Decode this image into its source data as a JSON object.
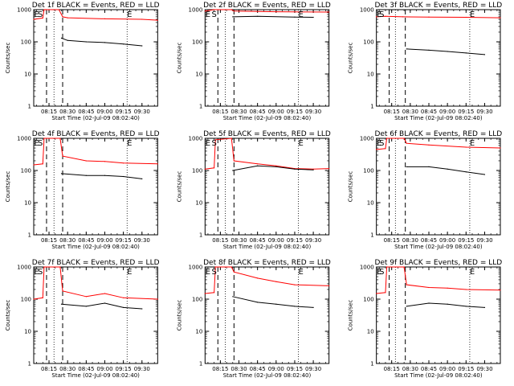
{
  "chart_data": [
    {
      "type": "line",
      "title": "Det 1f BLACK = Events, RED = LLD",
      "xlabel": "Start Time (02-Jul-09 08:02:40)",
      "ylabel": "Counts/sec",
      "yscale": "log",
      "ylim": [
        1,
        1000
      ],
      "xlim": [
        "08:02:40",
        "09:42:40"
      ],
      "x_ticks": [
        "08:15",
        "08:30",
        "08:45",
        "09:00",
        "09:15",
        "09:30"
      ],
      "y_ticks": [
        "1",
        "10",
        "100",
        "1000"
      ],
      "markers": [
        {
          "label": "E",
          "time": "08:05"
        },
        {
          "label": "S",
          "time": "08:08"
        },
        {
          "label": "E",
          "time": "09:20"
        }
      ],
      "dashed_lines": [
        "08:13",
        "08:26"
      ],
      "dotted_lines": [
        "08:19",
        "09:18"
      ],
      "series": [
        {
          "name": "LLD",
          "color": "#ff0000",
          "points": [
            [
              "08:02:40",
              500
            ],
            [
              "08:10",
              550
            ],
            [
              "08:11",
              1000
            ],
            [
              "08:12",
              1000
            ],
            [
              "08:23",
              1000
            ],
            [
              "08:26",
              600
            ],
            [
              "08:30",
              560
            ],
            [
              "09:00",
              520
            ],
            [
              "09:30",
              500
            ],
            [
              "09:42:40",
              470
            ]
          ]
        },
        {
          "name": "Events",
          "color": "#000000",
          "points": [
            [
              "08:25",
              130
            ],
            [
              "08:30",
              110
            ],
            [
              "08:45",
              100
            ],
            [
              "09:00",
              95
            ],
            [
              "09:15",
              85
            ],
            [
              "09:30",
              75
            ]
          ]
        }
      ]
    },
    {
      "type": "line",
      "title": "Det 2f BLACK = Events, RED = LLD",
      "xlabel": "Start Time (02-Jul-09 08:02:40)",
      "ylabel": "Counts/sec",
      "yscale": "log",
      "ylim": [
        1,
        1000
      ],
      "xlim": [
        "08:02:40",
        "09:42:40"
      ],
      "x_ticks": [
        "08:15",
        "08:30",
        "08:45",
        "09:00",
        "09:15",
        "09:30"
      ],
      "y_ticks": [
        "1",
        "10",
        "100",
        "1000"
      ],
      "markers": [
        {
          "label": "E",
          "time": "08:05"
        },
        {
          "label": "S",
          "time": "08:10"
        },
        {
          "label": "E",
          "time": "09:20"
        }
      ],
      "dashed_lines": [
        "08:13",
        "08:26"
      ],
      "dotted_lines": [
        "08:19",
        "09:18"
      ],
      "series": [
        {
          "name": "LLD",
          "color": "#ff0000",
          "points": [
            [
              "08:02:40",
              900
            ],
            [
              "08:10",
              1000
            ],
            [
              "08:24",
              1000
            ],
            [
              "08:26",
              900
            ],
            [
              "09:00",
              860
            ],
            [
              "09:42:40",
              840
            ]
          ]
        },
        {
          "name": "Events",
          "color": "#000000",
          "points": [
            [
              "08:25",
              600
            ],
            [
              "08:45",
              620
            ],
            [
              "09:15",
              590
            ],
            [
              "09:30",
              580
            ]
          ]
        }
      ]
    },
    {
      "type": "line",
      "title": "Det 3f BLACK = Events, RED = LLD",
      "xlabel": "Start Time (02-Jul-09 08:02:40)",
      "ylabel": "Counts/sec",
      "yscale": "log",
      "ylim": [
        1,
        1000
      ],
      "xlim": [
        "08:02:40",
        "09:42:40"
      ],
      "x_ticks": [
        "08:15",
        "08:30",
        "08:45",
        "09:00",
        "09:15",
        "09:30"
      ],
      "y_ticks": [
        "1",
        "10",
        "100",
        "1000"
      ],
      "markers": [
        {
          "label": "E",
          "time": "08:05"
        },
        {
          "label": "S",
          "time": "08:07"
        },
        {
          "label": "E",
          "time": "09:20"
        }
      ],
      "dashed_lines": [
        "08:13",
        "08:26"
      ],
      "dotted_lines": [
        "08:18",
        "09:18"
      ],
      "series": [
        {
          "name": "LLD",
          "color": "#ff0000",
          "points": [
            [
              "08:02:40",
              600
            ],
            [
              "08:10",
              620
            ],
            [
              "08:24",
              600
            ],
            [
              "08:45",
              590
            ],
            [
              "09:15",
              580
            ],
            [
              "09:42:40",
              560
            ]
          ]
        },
        {
          "name": "Events",
          "color": "#000000",
          "points": [
            [
              "08:27",
              60
            ],
            [
              "08:45",
              55
            ],
            [
              "09:00",
              50
            ],
            [
              "09:15",
              45
            ],
            [
              "09:30",
              40
            ]
          ]
        }
      ]
    },
    {
      "type": "line",
      "title": "Det 4f BLACK = Events, RED = LLD",
      "xlabel": "Start Time (02-Jul-09 08:02:40)",
      "ylabel": "Counts/sec",
      "yscale": "log",
      "ylim": [
        1,
        1000
      ],
      "xlim": [
        "08:02:40",
        "09:42:40"
      ],
      "x_ticks": [
        "08:15",
        "08:30",
        "08:45",
        "09:00",
        "09:15",
        "09:30"
      ],
      "y_ticks": [
        "1",
        "10",
        "100",
        "1000"
      ],
      "markers": [
        {
          "label": "E",
          "time": "08:05"
        },
        {
          "label": "S",
          "time": "08:08"
        },
        {
          "label": "E",
          "time": "09:20"
        }
      ],
      "dashed_lines": [
        "08:13",
        "08:26"
      ],
      "dotted_lines": [
        "08:19",
        "09:18"
      ],
      "series": [
        {
          "name": "LLD",
          "color": "#ff0000",
          "points": [
            [
              "08:02:40",
              150
            ],
            [
              "08:10",
              160
            ],
            [
              "08:11",
              1000
            ],
            [
              "08:24",
              1000
            ],
            [
              "08:26",
              280
            ],
            [
              "08:45",
              200
            ],
            [
              "09:00",
              190
            ],
            [
              "09:15",
              170
            ],
            [
              "09:42:40",
              160
            ]
          ]
        },
        {
          "name": "Events",
          "color": "#000000",
          "points": [
            [
              "08:25",
              80
            ],
            [
              "08:45",
              70
            ],
            [
              "09:00",
              70
            ],
            [
              "09:15",
              65
            ],
            [
              "09:30",
              55
            ]
          ]
        }
      ]
    },
    {
      "type": "line",
      "title": "Det 5f BLACK = Events, RED = LLD",
      "xlabel": "Start Time (02-Jul-09 08:02:40)",
      "ylabel": "Counts/sec",
      "yscale": "log",
      "ylim": [
        1,
        1000
      ],
      "xlim": [
        "08:02:40",
        "09:42:40"
      ],
      "x_ticks": [
        "08:15",
        "08:30",
        "08:45",
        "09:00",
        "09:15",
        "09:30"
      ],
      "y_ticks": [
        "1",
        "10",
        "100",
        "1000"
      ],
      "markers": [
        {
          "label": "E",
          "time": "08:05"
        },
        {
          "label": "S",
          "time": "08:10"
        },
        {
          "label": "E",
          "time": "09:20"
        }
      ],
      "dashed_lines": [
        "08:13",
        "08:26"
      ],
      "dotted_lines": [
        "08:19",
        "09:18"
      ],
      "series": [
        {
          "name": "LLD",
          "color": "#ff0000",
          "points": [
            [
              "08:02:40",
              110
            ],
            [
              "08:10",
              120
            ],
            [
              "08:11",
              900
            ],
            [
              "08:24",
              1000
            ],
            [
              "08:26",
              200
            ],
            [
              "08:45",
              160
            ],
            [
              "09:00",
              140
            ],
            [
              "09:15",
              115
            ],
            [
              "09:30",
              110
            ],
            [
              "09:42:40",
              115
            ]
          ]
        },
        {
          "name": "Events",
          "color": "#000000",
          "points": [
            [
              "08:25",
              100
            ],
            [
              "08:45",
              140
            ],
            [
              "09:00",
              130
            ],
            [
              "09:15",
              110
            ],
            [
              "09:30",
              105
            ]
          ]
        }
      ]
    },
    {
      "type": "line",
      "title": "Det 6f BLACK = Events, RED = LLD",
      "xlabel": "Start Time (02-Jul-09 08:02:40)",
      "ylabel": "Counts/sec",
      "yscale": "log",
      "ylim": [
        1,
        1000
      ],
      "xlim": [
        "08:02:40",
        "09:42:40"
      ],
      "x_ticks": [
        "08:15",
        "08:30",
        "08:45",
        "09:00",
        "09:15",
        "09:30"
      ],
      "y_ticks": [
        "1",
        "10",
        "100",
        "1000"
      ],
      "markers": [
        {
          "label": "E",
          "time": "08:05"
        },
        {
          "label": "S",
          "time": "08:07"
        },
        {
          "label": "E",
          "time": "09:20"
        }
      ],
      "dashed_lines": [
        "08:13",
        "08:26"
      ],
      "dotted_lines": [
        "08:18",
        "09:18"
      ],
      "series": [
        {
          "name": "LLD",
          "color": "#ff0000",
          "points": [
            [
              "08:02:40",
              450
            ],
            [
              "08:10",
              480
            ],
            [
              "08:11",
              1000
            ],
            [
              "08:25",
              1000
            ],
            [
              "08:27",
              700
            ],
            [
              "08:45",
              620
            ],
            [
              "09:15",
              530
            ],
            [
              "09:42:40",
              500
            ]
          ]
        },
        {
          "name": "Events",
          "color": "#000000",
          "points": [
            [
              "08:27",
              130
            ],
            [
              "08:45",
              130
            ],
            [
              "09:00",
              110
            ],
            [
              "09:15",
              90
            ],
            [
              "09:30",
              75
            ]
          ]
        }
      ]
    },
    {
      "type": "line",
      "title": "Det 7f BLACK = Events, RED = LLD",
      "xlabel": "Start Time (02-Jul-09 08:02:40)",
      "ylabel": "Counts/sec",
      "yscale": "log",
      "ylim": [
        1,
        1000
      ],
      "xlim": [
        "08:02:40",
        "09:42:40"
      ],
      "x_ticks": [
        "08:15",
        "08:30",
        "08:45",
        "09:00",
        "09:15",
        "09:30"
      ],
      "y_ticks": [
        "1",
        "10",
        "100",
        "1000"
      ],
      "markers": [
        {
          "label": "E",
          "time": "08:05"
        },
        {
          "label": "S",
          "time": "08:08"
        },
        {
          "label": "E",
          "time": "09:20"
        }
      ],
      "dashed_lines": [
        "08:13",
        "08:26"
      ],
      "dotted_lines": [
        "08:19",
        "09:18"
      ],
      "series": [
        {
          "name": "LLD",
          "color": "#ff0000",
          "points": [
            [
              "08:02:40",
              100
            ],
            [
              "08:10",
              110
            ],
            [
              "08:11",
              1000
            ],
            [
              "08:24",
              1000
            ],
            [
              "08:26",
              180
            ],
            [
              "08:45",
              120
            ],
            [
              "09:00",
              150
            ],
            [
              "09:15",
              110
            ],
            [
              "09:42:40",
              100
            ]
          ]
        },
        {
          "name": "Events",
          "color": "#000000",
          "points": [
            [
              "08:25",
              70
            ],
            [
              "08:45",
              60
            ],
            [
              "09:00",
              75
            ],
            [
              "09:15",
              55
            ],
            [
              "09:30",
              50
            ]
          ]
        }
      ]
    },
    {
      "type": "line",
      "title": "Det 8f BLACK = Events, RED = LLD",
      "xlabel": "Start Time (02-Jul-09 08:02:40)",
      "ylabel": "Counts/sec",
      "yscale": "log",
      "ylim": [
        1,
        1000
      ],
      "xlim": [
        "08:02:40",
        "09:42:40"
      ],
      "x_ticks": [
        "08:15",
        "08:30",
        "08:45",
        "09:00",
        "09:15",
        "09:30"
      ],
      "y_ticks": [
        "1",
        "10",
        "100",
        "1000"
      ],
      "markers": [
        {
          "label": "E",
          "time": "08:05"
        },
        {
          "label": "S",
          "time": "08:10"
        },
        {
          "label": "E",
          "time": "09:20"
        }
      ],
      "dashed_lines": [
        "08:13",
        "08:26"
      ],
      "dotted_lines": [
        "08:19",
        "09:18"
      ],
      "series": [
        {
          "name": "LLD",
          "color": "#ff0000",
          "points": [
            [
              "08:02:40",
              150
            ],
            [
              "08:10",
              160
            ],
            [
              "08:11",
              1000
            ],
            [
              "08:24",
              1000
            ],
            [
              "08:26",
              700
            ],
            [
              "08:45",
              450
            ],
            [
              "09:00",
              350
            ],
            [
              "09:15",
              280
            ],
            [
              "09:42:40",
              260
            ]
          ]
        },
        {
          "name": "Events",
          "color": "#000000",
          "points": [
            [
              "08:25",
              120
            ],
            [
              "08:45",
              80
            ],
            [
              "09:00",
              70
            ],
            [
              "09:15",
              60
            ],
            [
              "09:30",
              55
            ]
          ]
        }
      ]
    },
    {
      "type": "line",
      "title": "Det 9f BLACK = Events, RED = LLD",
      "xlabel": "Start Time (02-Jul-09 08:02:40)",
      "ylabel": "Counts/sec",
      "yscale": "log",
      "ylim": [
        1,
        1000
      ],
      "xlim": [
        "08:02:40",
        "09:42:40"
      ],
      "x_ticks": [
        "08:15",
        "08:30",
        "08:45",
        "09:00",
        "09:15",
        "09:30"
      ],
      "y_ticks": [
        "1",
        "10",
        "100",
        "1000"
      ],
      "markers": [
        {
          "label": "E",
          "time": "08:05"
        },
        {
          "label": "S",
          "time": "08:07"
        },
        {
          "label": "E",
          "time": "09:20"
        }
      ],
      "dashed_lines": [
        "08:13",
        "08:26"
      ],
      "dotted_lines": [
        "08:18",
        "09:18"
      ],
      "series": [
        {
          "name": "LLD",
          "color": "#ff0000",
          "points": [
            [
              "08:02:40",
              150
            ],
            [
              "08:10",
              160
            ],
            [
              "08:11",
              1000
            ],
            [
              "08:25",
              1000
            ],
            [
              "08:27",
              280
            ],
            [
              "08:45",
              230
            ],
            [
              "09:00",
              220
            ],
            [
              "09:15",
              200
            ],
            [
              "09:42:40",
              190
            ]
          ]
        },
        {
          "name": "Events",
          "color": "#000000",
          "points": [
            [
              "08:27",
              60
            ],
            [
              "08:45",
              75
            ],
            [
              "09:00",
              70
            ],
            [
              "09:15",
              60
            ],
            [
              "09:30",
              55
            ]
          ]
        }
      ]
    }
  ]
}
